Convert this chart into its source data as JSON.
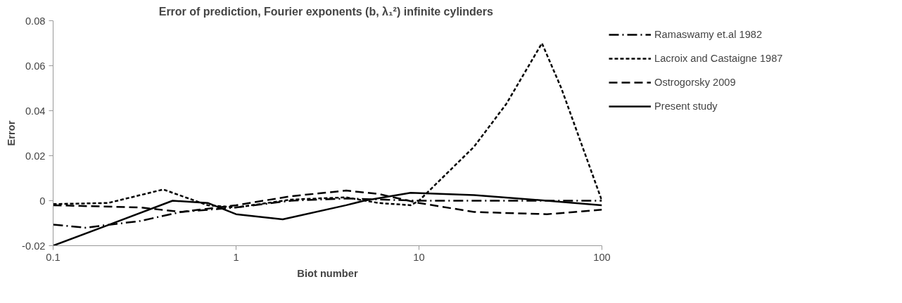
{
  "chart_data": {
    "type": "line",
    "title": "Error of prediction, Fourier exponents (b, λ₁²)  infinite cylinders",
    "xlabel": "Biot number",
    "ylabel": "Error",
    "log": "x",
    "xlim": [
      0.1,
      100
    ],
    "xticks": [
      0.1,
      1,
      10,
      100
    ],
    "ylim": [
      -0.02,
      0.08
    ],
    "yticks": [
      -0.02,
      0,
      0.02,
      0.04,
      0.06,
      0.08
    ],
    "grid": false,
    "legend": "right",
    "marker": "none",
    "series": [
      {
        "name": "Ramaswamy et.al 1982",
        "color": "#000000",
        "line_style": "dashdot",
        "x": [
          0.1,
          0.15,
          0.3,
          0.5,
          1,
          2,
          4,
          10,
          20,
          50,
          100
        ],
        "values": [
          -0.0106,
          -0.012,
          -0.009,
          -0.005,
          -0.003,
          0,
          0.001,
          0,
          0,
          0,
          0
        ]
      },
      {
        "name": "Lacroix and Castaigne 1987",
        "color": "#000000",
        "line_style": "dotted",
        "x": [
          0.1,
          0.2,
          0.4,
          0.7,
          1,
          2,
          4,
          6,
          9,
          10,
          20,
          30,
          47,
          60,
          100
        ],
        "values": [
          -0.0015,
          -0.001,
          0.005,
          -0.002,
          -0.003,
          0.0005,
          0.0015,
          -0.001,
          -0.002,
          0,
          0.024,
          0.043,
          0.07,
          0.05,
          0
        ]
      },
      {
        "name": "Ostrogorsky 2009",
        "color": "#000000",
        "line_style": "dashed",
        "x": [
          0.1,
          0.3,
          0.5,
          1,
          2,
          4,
          6,
          10,
          20,
          50,
          100
        ],
        "values": [
          -0.002,
          -0.003,
          -0.005,
          -0.002,
          0.002,
          0.0045,
          0.003,
          -0.001,
          -0.005,
          -0.006,
          -0.004
        ]
      },
      {
        "name": "Present study",
        "color": "#000000",
        "line_style": "solid",
        "x": [
          0.1,
          0.2,
          0.45,
          0.7,
          1,
          1.8,
          4,
          5,
          9,
          20,
          50,
          100
        ],
        "values": [
          -0.02,
          -0.0108,
          0,
          -0.001,
          -0.006,
          -0.0083,
          -0.002,
          0,
          0.0035,
          0.0025,
          0,
          -0.002
        ]
      }
    ]
  }
}
